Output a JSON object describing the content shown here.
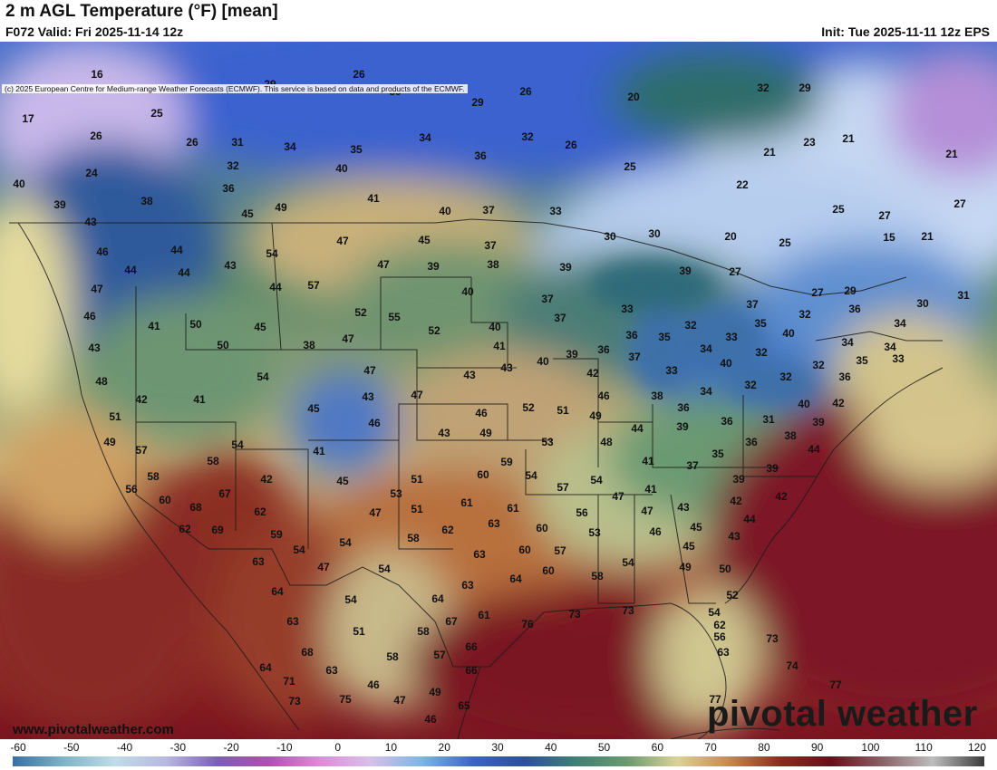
{
  "header": {
    "title": "2 m AGL Temperature (°F) [mean]",
    "valid": "F072 Valid: Fri 2025-11-14 12z",
    "init": "Init: Tue 2025-11-11 12z EPS",
    "copyright": "(c) 2025 European Centre for Medium-range Weather Forecasts (ECMWF). This service is based on data and products of the ECMWF."
  },
  "footer": {
    "website": "www.pivotalweather.com",
    "brand": "pivotal weather"
  },
  "colorbar": {
    "ticks": [
      "-60",
      "-50",
      "-40",
      "-30",
      "-20",
      "-10",
      "0",
      "10",
      "20",
      "30",
      "40",
      "50",
      "60",
      "70",
      "80",
      "90",
      "100",
      "110",
      "120"
    ],
    "stops": [
      "#3a6fa2",
      "#7fb4c8",
      "#c0dce8",
      "#b8b8e0",
      "#7a5eb8",
      "#b04fb0",
      "#e08ad8",
      "#d8c0ea",
      "#7db6e4",
      "#3b62c9",
      "#2c4f9d",
      "#3f7f76",
      "#6a9a6f",
      "#dcd29a",
      "#c78a4c",
      "#8e2b1e",
      "#6a0d1a",
      "#8a6266",
      "#bdbdbd",
      "#3a3a3a"
    ]
  },
  "map": {
    "labels": [
      [
        "16",
        107,
        82
      ],
      [
        "26",
        396,
        82
      ],
      [
        "29",
        298,
        93
      ],
      [
        "30",
        436,
        101
      ],
      [
        "26",
        580,
        101
      ],
      [
        "20",
        699,
        107
      ],
      [
        "32",
        842,
        97
      ],
      [
        "29",
        888,
        97
      ],
      [
        "17",
        31,
        131
      ],
      [
        "25",
        173,
        125
      ],
      [
        "29",
        527,
        113
      ],
      [
        "26",
        106,
        150
      ],
      [
        "26",
        212,
        157
      ],
      [
        "31",
        262,
        157
      ],
      [
        "34",
        320,
        162
      ],
      [
        "35",
        393,
        165
      ],
      [
        "34",
        469,
        152
      ],
      [
        "32",
        582,
        151
      ],
      [
        "26",
        630,
        160
      ],
      [
        "23",
        893,
        157
      ],
      [
        "21",
        936,
        153
      ],
      [
        "21",
        849,
        168
      ],
      [
        "21",
        1050,
        170
      ],
      [
        "24",
        101,
        191
      ],
      [
        "32",
        257,
        183
      ],
      [
        "40",
        377,
        186
      ],
      [
        "36",
        530,
        172
      ],
      [
        "25",
        695,
        184
      ],
      [
        "22",
        819,
        204
      ],
      [
        "40",
        21,
        203
      ],
      [
        "36",
        252,
        208
      ],
      [
        "38",
        162,
        222
      ],
      [
        "39",
        66,
        226
      ],
      [
        "45",
        273,
        236
      ],
      [
        "49",
        310,
        229
      ],
      [
        "41",
        412,
        219
      ],
      [
        "40",
        491,
        233
      ],
      [
        "37",
        539,
        232
      ],
      [
        "33",
        613,
        233
      ],
      [
        "25",
        925,
        231
      ],
      [
        "27",
        1059,
        225
      ],
      [
        "27",
        976,
        238
      ],
      [
        "43",
        100,
        245
      ],
      [
        "47",
        378,
        266
      ],
      [
        "45",
        468,
        265
      ],
      [
        "30",
        673,
        261
      ],
      [
        "30",
        722,
        258
      ],
      [
        "20",
        806,
        261
      ],
      [
        "25",
        866,
        268
      ],
      [
        "15",
        981,
        262
      ],
      [
        "21",
        1023,
        261
      ],
      [
        "46",
        113,
        278
      ],
      [
        "44",
        195,
        276
      ],
      [
        "54",
        300,
        280
      ],
      [
        "37",
        541,
        271
      ],
      [
        "43",
        254,
        293
      ],
      [
        "47",
        423,
        292
      ],
      [
        "39",
        478,
        294
      ],
      [
        "38",
        544,
        292
      ],
      [
        "39",
        624,
        295
      ],
      [
        "39",
        756,
        299
      ],
      [
        "27",
        811,
        300
      ],
      [
        "44",
        144,
        298
      ],
      [
        "44",
        203,
        301
      ],
      [
        "44",
        304,
        317
      ],
      [
        "57",
        346,
        315
      ],
      [
        "47",
        107,
        319
      ],
      [
        "40",
        516,
        322
      ],
      [
        "37",
        604,
        330
      ],
      [
        "27",
        902,
        323
      ],
      [
        "29",
        938,
        321
      ],
      [
        "30",
        1018,
        335
      ],
      [
        "31",
        1063,
        326
      ],
      [
        "46",
        99,
        349
      ],
      [
        "50",
        216,
        358
      ],
      [
        "52",
        398,
        345
      ],
      [
        "55",
        435,
        350
      ],
      [
        "37",
        618,
        351
      ],
      [
        "33",
        692,
        341
      ],
      [
        "37",
        830,
        336
      ],
      [
        "32",
        888,
        347
      ],
      [
        "36",
        943,
        341
      ],
      [
        "34",
        993,
        357
      ],
      [
        "41",
        170,
        360
      ],
      [
        "45",
        287,
        361
      ],
      [
        "38",
        341,
        381
      ],
      [
        "47",
        384,
        374
      ],
      [
        "52",
        479,
        365
      ],
      [
        "40",
        546,
        361
      ],
      [
        "36",
        697,
        370
      ],
      [
        "35",
        733,
        372
      ],
      [
        "32",
        762,
        359
      ],
      [
        "33",
        807,
        372
      ],
      [
        "35",
        839,
        357
      ],
      [
        "40",
        870,
        368
      ],
      [
        "34",
        935,
        378
      ],
      [
        "34",
        982,
        383
      ],
      [
        "43",
        104,
        384
      ],
      [
        "50",
        246,
        381
      ],
      [
        "41",
        551,
        382
      ],
      [
        "36",
        666,
        386
      ],
      [
        "39",
        631,
        391
      ],
      [
        "37",
        700,
        394
      ],
      [
        "34",
        779,
        385
      ],
      [
        "32",
        840,
        389
      ],
      [
        "35",
        951,
        398
      ],
      [
        "33",
        991,
        396
      ],
      [
        "48",
        112,
        421
      ],
      [
        "54",
        290,
        416
      ],
      [
        "47",
        408,
        409
      ],
      [
        "43",
        518,
        414
      ],
      [
        "40",
        599,
        399
      ],
      [
        "43",
        559,
        406
      ],
      [
        "42",
        654,
        412
      ],
      [
        "33",
        741,
        409
      ],
      [
        "40",
        801,
        401
      ],
      [
        "32",
        867,
        416
      ],
      [
        "32",
        903,
        403
      ],
      [
        "36",
        932,
        416
      ],
      [
        "42",
        156,
        441
      ],
      [
        "41",
        220,
        441
      ],
      [
        "45",
        346,
        451
      ],
      [
        "43",
        406,
        438
      ],
      [
        "47",
        460,
        436
      ],
      [
        "38",
        725,
        437
      ],
      [
        "34",
        779,
        432
      ],
      [
        "32",
        828,
        425
      ],
      [
        "46",
        666,
        437
      ],
      [
        "40",
        887,
        446
      ],
      [
        "42",
        925,
        445
      ],
      [
        "51",
        127,
        460
      ],
      [
        "46",
        413,
        467
      ],
      [
        "46",
        531,
        456
      ],
      [
        "52",
        583,
        450
      ],
      [
        "51",
        621,
        453
      ],
      [
        "49",
        657,
        459
      ],
      [
        "36",
        754,
        450
      ],
      [
        "36",
        802,
        465
      ],
      [
        "31",
        848,
        463
      ],
      [
        "39",
        903,
        466
      ],
      [
        "49",
        121,
        488
      ],
      [
        "43",
        490,
        478
      ],
      [
        "49",
        536,
        478
      ],
      [
        "53",
        604,
        488
      ],
      [
        "44",
        703,
        473
      ],
      [
        "39",
        753,
        471
      ],
      [
        "38",
        872,
        481
      ],
      [
        "54",
        262,
        491
      ],
      [
        "41",
        352,
        498
      ],
      [
        "48",
        669,
        488
      ],
      [
        "36",
        829,
        488
      ],
      [
        "44",
        898,
        496
      ],
      [
        "57",
        156,
        497
      ],
      [
        "58",
        235,
        509
      ],
      [
        "59",
        559,
        510
      ],
      [
        "35",
        792,
        501
      ],
      [
        "41",
        715,
        509
      ],
      [
        "37",
        764,
        514
      ],
      [
        "39",
        852,
        517
      ],
      [
        "58",
        169,
        526
      ],
      [
        "42",
        294,
        529
      ],
      [
        "45",
        378,
        531
      ],
      [
        "51",
        460,
        529
      ],
      [
        "60",
        533,
        524
      ],
      [
        "54",
        586,
        525
      ],
      [
        "54",
        658,
        530
      ],
      [
        "39",
        815,
        529
      ],
      [
        "56",
        145,
        540
      ],
      [
        "67",
        248,
        545
      ],
      [
        "53",
        437,
        545
      ],
      [
        "57",
        621,
        538
      ],
      [
        "47",
        682,
        548
      ],
      [
        "41",
        718,
        540
      ],
      [
        "43",
        754,
        560
      ],
      [
        "42",
        812,
        553
      ],
      [
        "42",
        862,
        548
      ],
      [
        "60",
        182,
        552
      ],
      [
        "68",
        216,
        560
      ],
      [
        "62",
        287,
        565
      ],
      [
        "51",
        460,
        562
      ],
      [
        "61",
        515,
        555
      ],
      [
        "61",
        566,
        561
      ],
      [
        "47",
        414,
        566
      ],
      [
        "56",
        642,
        566
      ],
      [
        "47",
        714,
        564
      ],
      [
        "44",
        827,
        573
      ],
      [
        "62",
        204,
        584
      ],
      [
        "69",
        240,
        585
      ],
      [
        "59",
        305,
        590
      ],
      [
        "62",
        494,
        585
      ],
      [
        "63",
        545,
        578
      ],
      [
        "60",
        598,
        583
      ],
      [
        "46",
        723,
        587
      ],
      [
        "45",
        768,
        582
      ],
      [
        "43",
        810,
        592
      ],
      [
        "54",
        330,
        607
      ],
      [
        "54",
        381,
        599
      ],
      [
        "58",
        456,
        594
      ],
      [
        "53",
        656,
        588
      ],
      [
        "57",
        618,
        608
      ],
      [
        "60",
        579,
        607
      ],
      [
        "45",
        760,
        603
      ],
      [
        "63",
        285,
        620
      ],
      [
        "63",
        529,
        612
      ],
      [
        "47",
        357,
        626
      ],
      [
        "54",
        424,
        628
      ],
      [
        "54",
        693,
        621
      ],
      [
        "58",
        659,
        636
      ],
      [
        "60",
        605,
        630
      ],
      [
        "64",
        569,
        639
      ],
      [
        "49",
        756,
        626
      ],
      [
        "50",
        800,
        628
      ],
      [
        "64",
        306,
        653
      ],
      [
        "54",
        387,
        662
      ],
      [
        "63",
        516,
        646
      ],
      [
        "64",
        483,
        661
      ],
      [
        "52",
        808,
        657
      ],
      [
        "63",
        323,
        686
      ],
      [
        "51",
        396,
        697
      ],
      [
        "58",
        467,
        697
      ],
      [
        "67",
        498,
        686
      ],
      [
        "61",
        534,
        679
      ],
      [
        "76",
        582,
        689
      ],
      [
        "73",
        634,
        678
      ],
      [
        "73",
        693,
        674
      ],
      [
        "54",
        788,
        676
      ],
      [
        "62",
        794,
        690
      ],
      [
        "68",
        339,
        720
      ],
      [
        "58",
        433,
        725
      ],
      [
        "57",
        485,
        723
      ],
      [
        "66",
        520,
        714
      ],
      [
        "56",
        794,
        703
      ],
      [
        "63",
        798,
        720
      ],
      [
        "73",
        852,
        705
      ],
      [
        "64",
        293,
        737
      ],
      [
        "63",
        366,
        740
      ],
      [
        "66",
        520,
        740
      ],
      [
        "74",
        874,
        735
      ],
      [
        "71",
        319,
        752
      ],
      [
        "46",
        412,
        756
      ],
      [
        "49",
        480,
        764
      ],
      [
        "77",
        922,
        756
      ],
      [
        "73",
        325,
        774
      ],
      [
        "75",
        381,
        772
      ],
      [
        "47",
        441,
        773
      ],
      [
        "65",
        512,
        779
      ],
      [
        "77",
        789,
        772
      ],
      [
        "46",
        475,
        794
      ]
    ]
  }
}
